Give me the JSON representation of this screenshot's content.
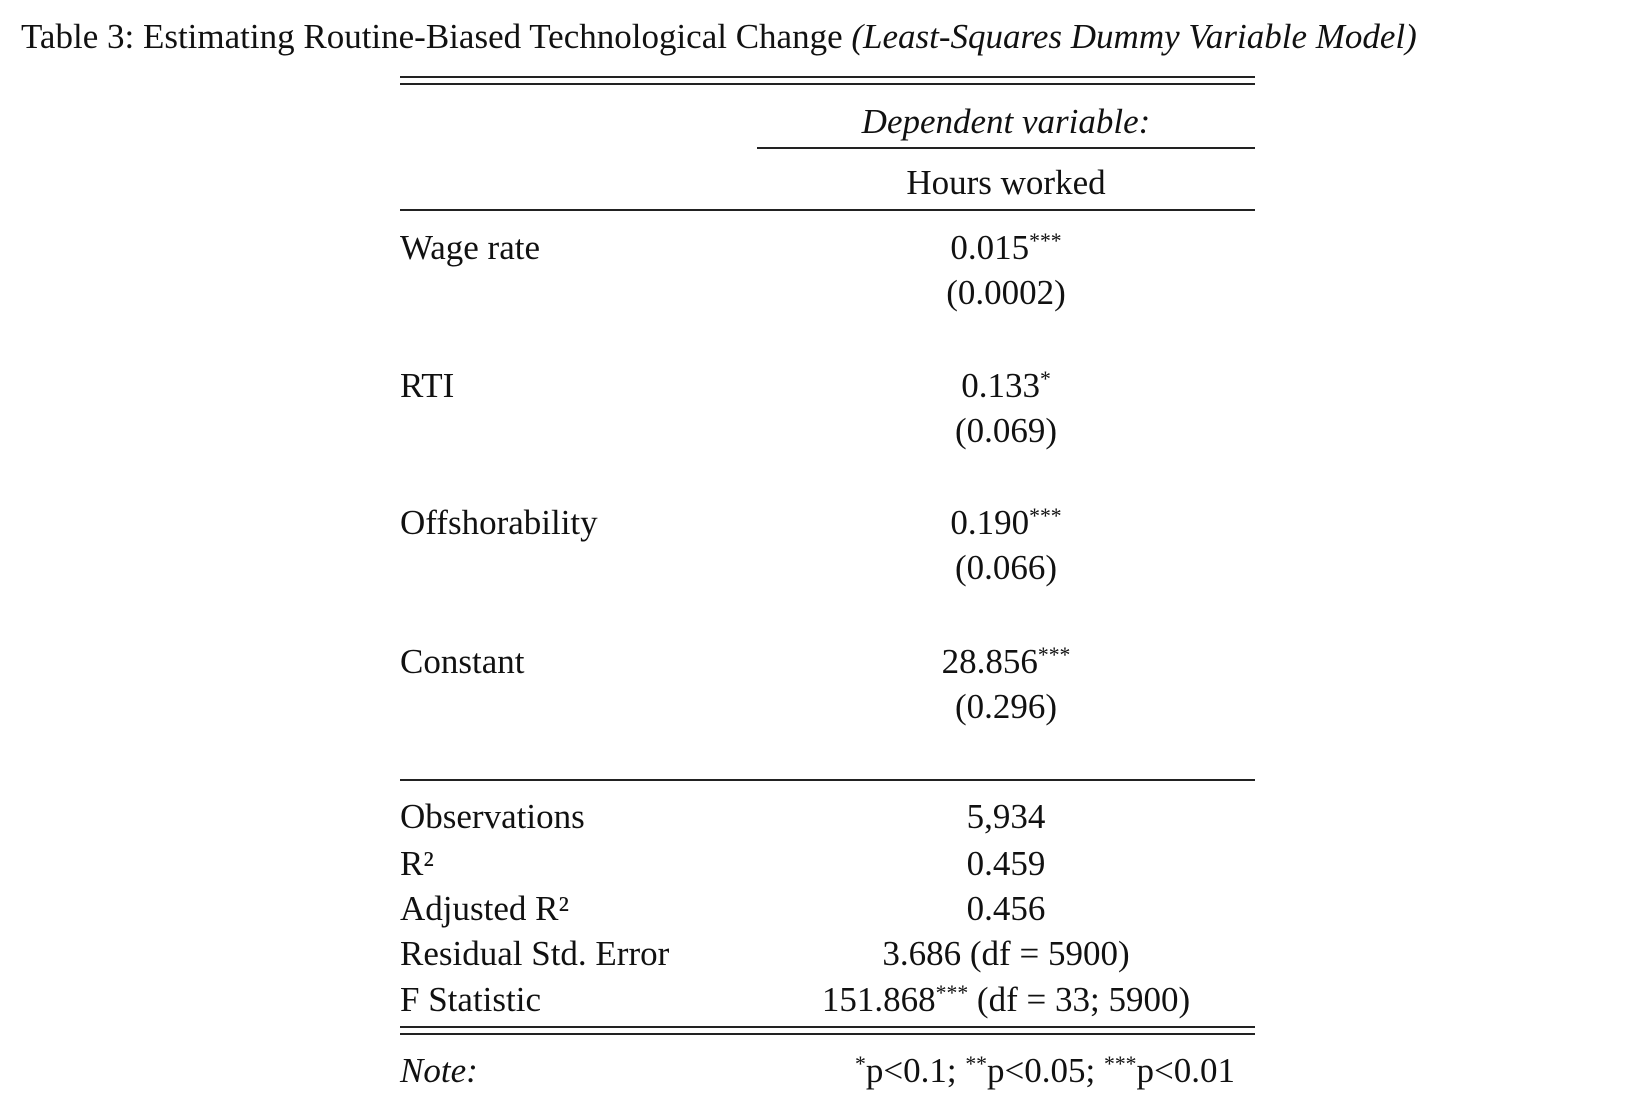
{
  "caption": {
    "label": "Table 3: Estimating Routine-Biased Technological Change",
    "model": "(Least-Squares Dummy Variable Model)"
  },
  "header": {
    "dependent_label": "Dependent variable:",
    "dependent": "Hours worked"
  },
  "coefficients": [
    {
      "name": "Wage rate",
      "estimate": "0.015",
      "stars": "***",
      "se": "(0.0002)"
    },
    {
      "name": "RTI",
      "estimate": "0.133",
      "stars": "*",
      "se": "(0.069)"
    },
    {
      "name": "Offshorability",
      "estimate": "0.190",
      "stars": "***",
      "se": "(0.066)"
    },
    {
      "name": "Constant",
      "estimate": "28.856",
      "stars": "***",
      "se": "(0.296)"
    }
  ],
  "statistics": [
    {
      "name": "Observations",
      "value": "5,934"
    },
    {
      "name": "R²",
      "value": "0.459"
    },
    {
      "name": "Adjusted R²",
      "value": "0.456"
    },
    {
      "name": "Residual Std. Error",
      "value": "3.686 (df = 5900)"
    },
    {
      "name": "F Statistic",
      "value": "151.868",
      "stars": "***",
      "detail": "(df = 33; 5900)"
    }
  ],
  "note": {
    "label": "Note:",
    "levels": [
      {
        "stars": "*",
        "text": "p<0.1;"
      },
      {
        "stars": "**",
        "text": "p<0.05;"
      },
      {
        "stars": "***",
        "text": "p<0.01"
      }
    ]
  }
}
